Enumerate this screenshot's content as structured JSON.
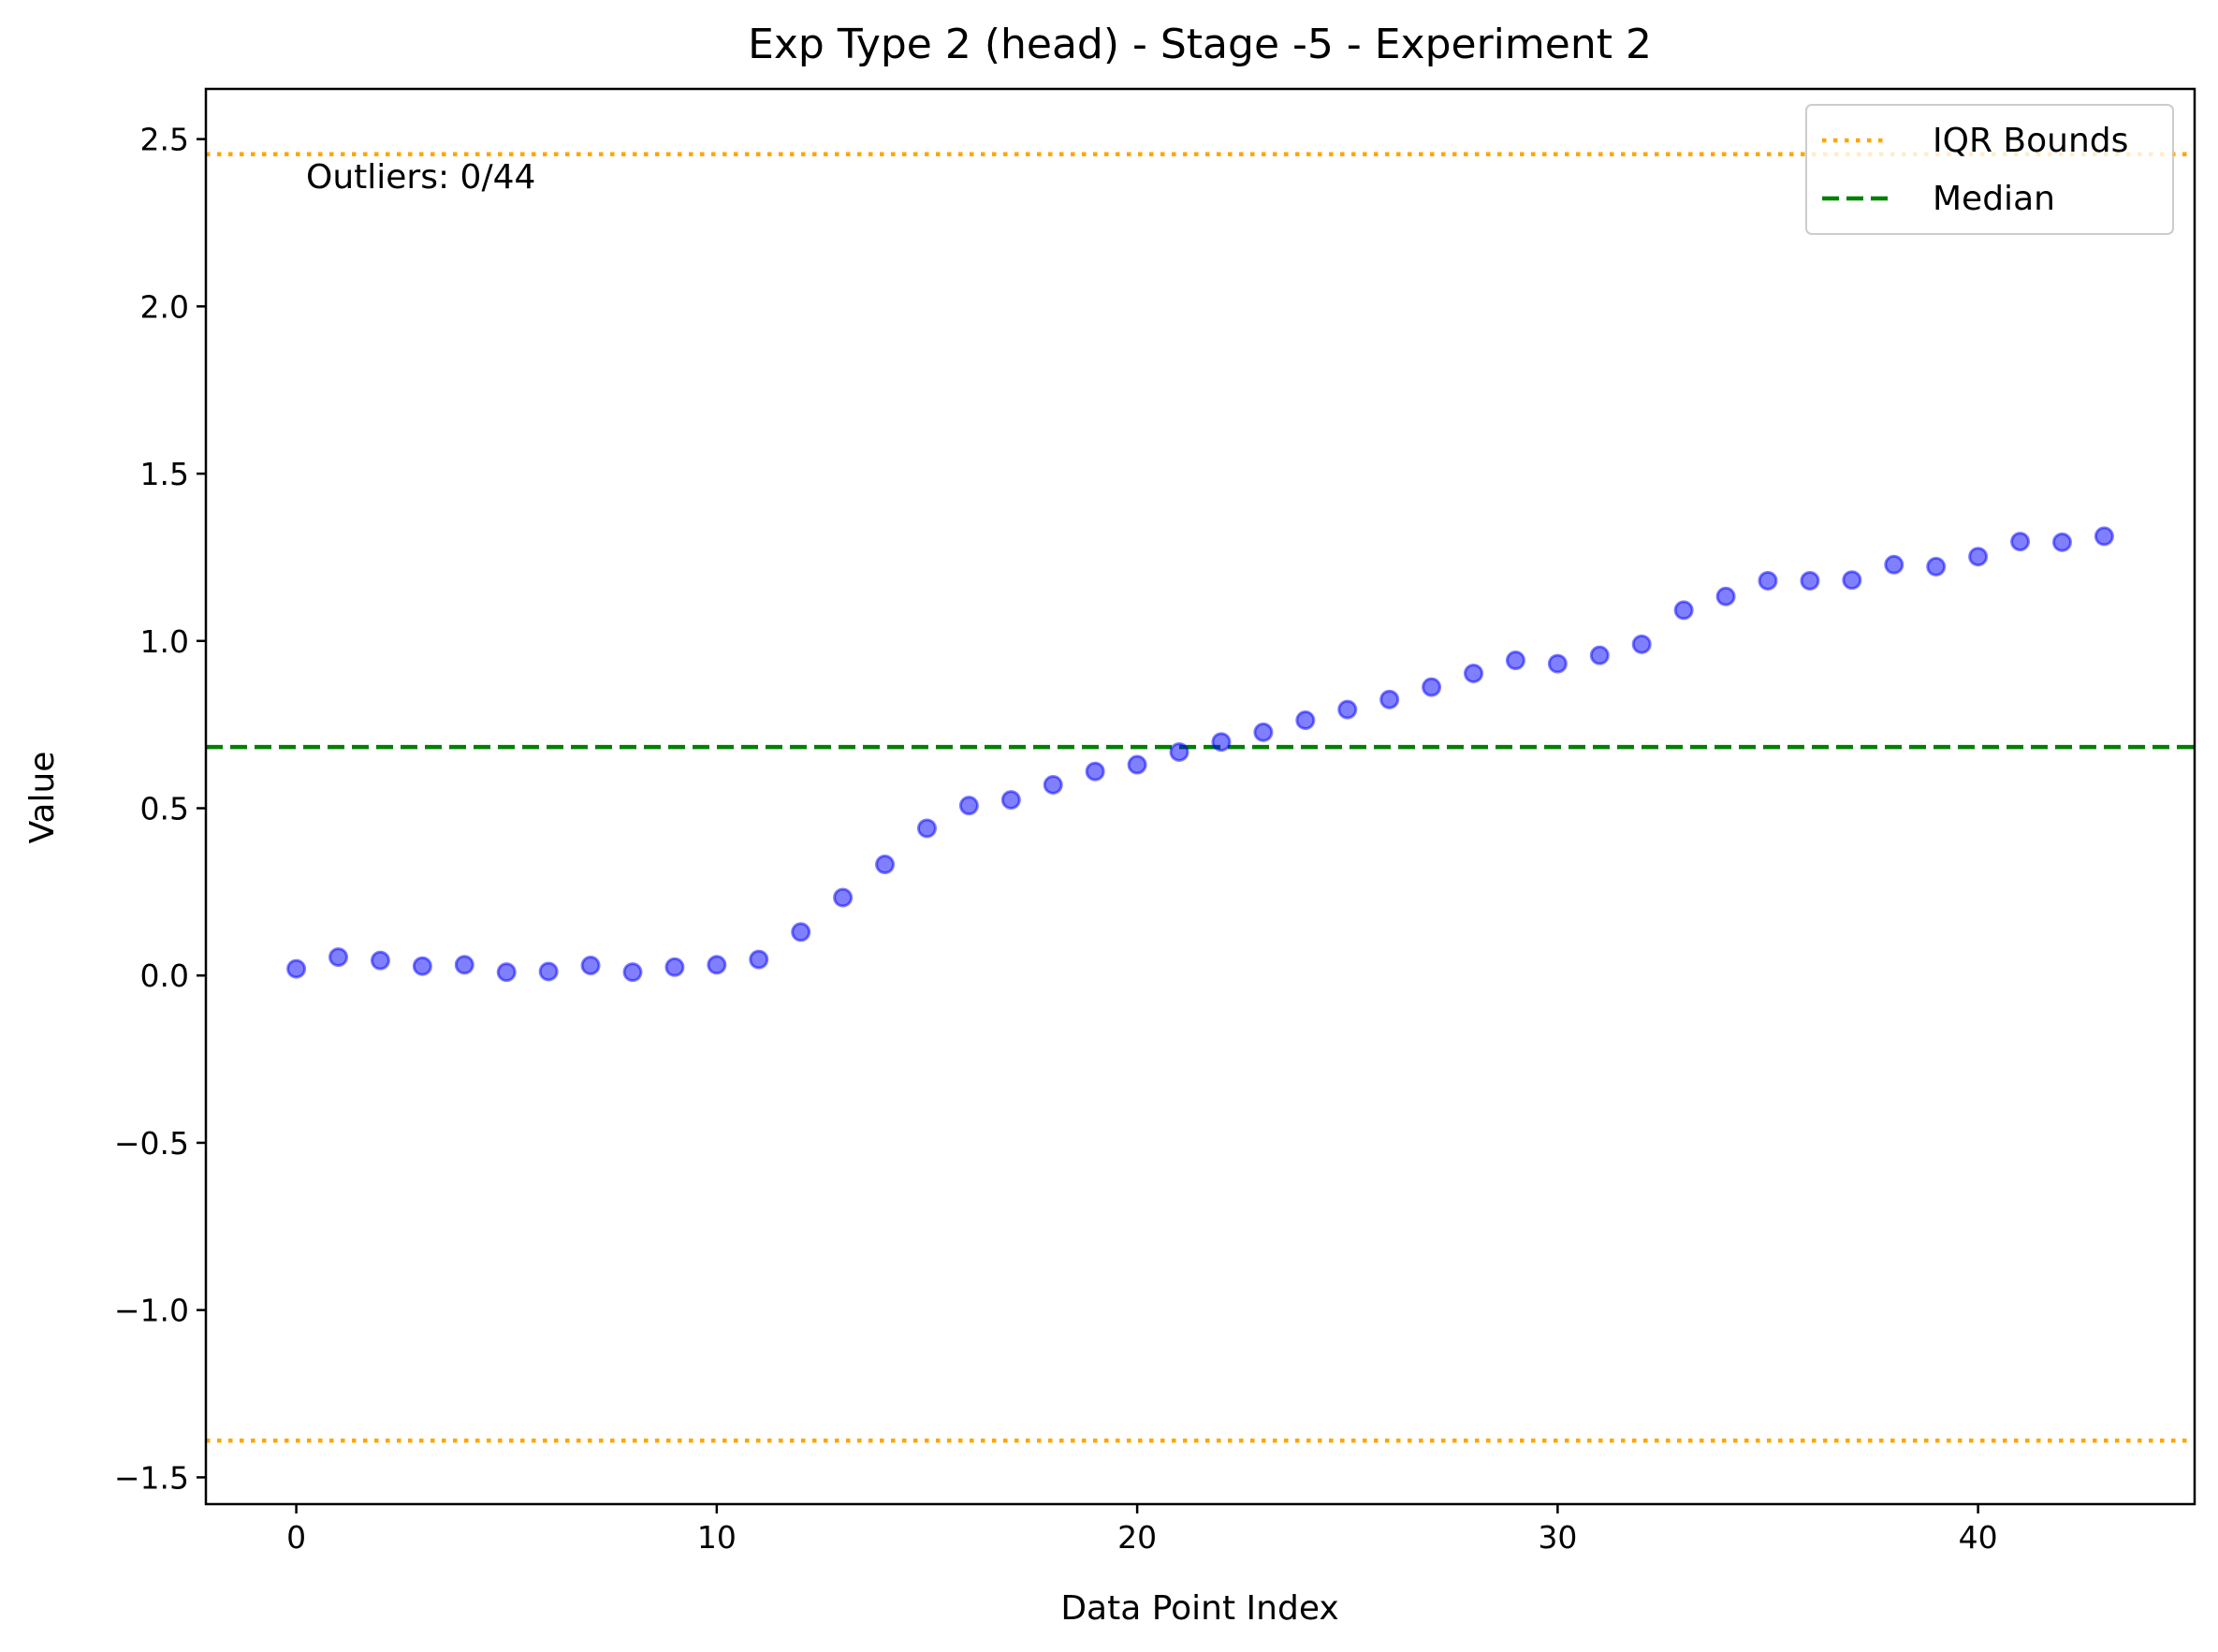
{
  "chart_data": {
    "type": "scatter",
    "title": "Exp Type 2 (head) - Stage -5 - Experiment 2",
    "xlabel": "Data Point Index",
    "ylabel": "Value",
    "xlim": [
      -2.15,
      45.15
    ],
    "ylim": [
      -1.58,
      2.65
    ],
    "xticks": [
      0,
      10,
      20,
      30,
      40
    ],
    "xtick_labels": [
      "0",
      "10",
      "20",
      "30",
      "40"
    ],
    "yticks": [
      2.5,
      2.0,
      1.5,
      1.0,
      0.5,
      0.0,
      -0.5,
      -1.0,
      -1.5
    ],
    "ytick_labels": [
      "2.5",
      "2.0",
      "1.5",
      "1.0",
      "0.5",
      "0.0",
      "−0.5",
      "−1.0",
      "−1.5"
    ],
    "grid": false,
    "legend_position": "top-right",
    "annotation": "Outliers: 0/44",
    "series": [
      {
        "marker": "circle",
        "color": "#0000ff",
        "x": [
          0,
          1,
          2,
          3,
          4,
          5,
          6,
          7,
          8,
          9,
          10,
          11,
          12,
          13,
          14,
          15,
          16,
          17,
          18,
          19,
          20,
          21,
          22,
          23,
          24,
          25,
          26,
          27,
          28,
          29,
          30,
          31,
          32,
          33,
          34,
          35,
          36,
          37,
          38,
          39,
          40,
          41,
          42,
          43
        ],
        "y": [
          0.02,
          0.055,
          0.045,
          0.028,
          0.032,
          0.01,
          0.012,
          0.03,
          0.01,
          0.025,
          0.032,
          0.048,
          0.13,
          0.233,
          0.332,
          0.44,
          0.508,
          0.525,
          0.57,
          0.61,
          0.63,
          0.668,
          0.698,
          0.727,
          0.763,
          0.795,
          0.825,
          0.862,
          0.903,
          0.942,
          0.932,
          0.957,
          0.99,
          1.092,
          1.133,
          1.18,
          1.18,
          1.182,
          1.228,
          1.222,
          1.252,
          1.297,
          1.295,
          1.313
        ]
      }
    ],
    "reference_lines": [
      {
        "name": "IQR Bounds",
        "type": "hline",
        "y": [
          2.455,
          -1.39
        ],
        "color": "#ffa500",
        "style": "dotted"
      },
      {
        "name": "Median",
        "type": "hline",
        "y": [
          0.683
        ],
        "color": "#008000",
        "style": "dashed"
      }
    ]
  }
}
